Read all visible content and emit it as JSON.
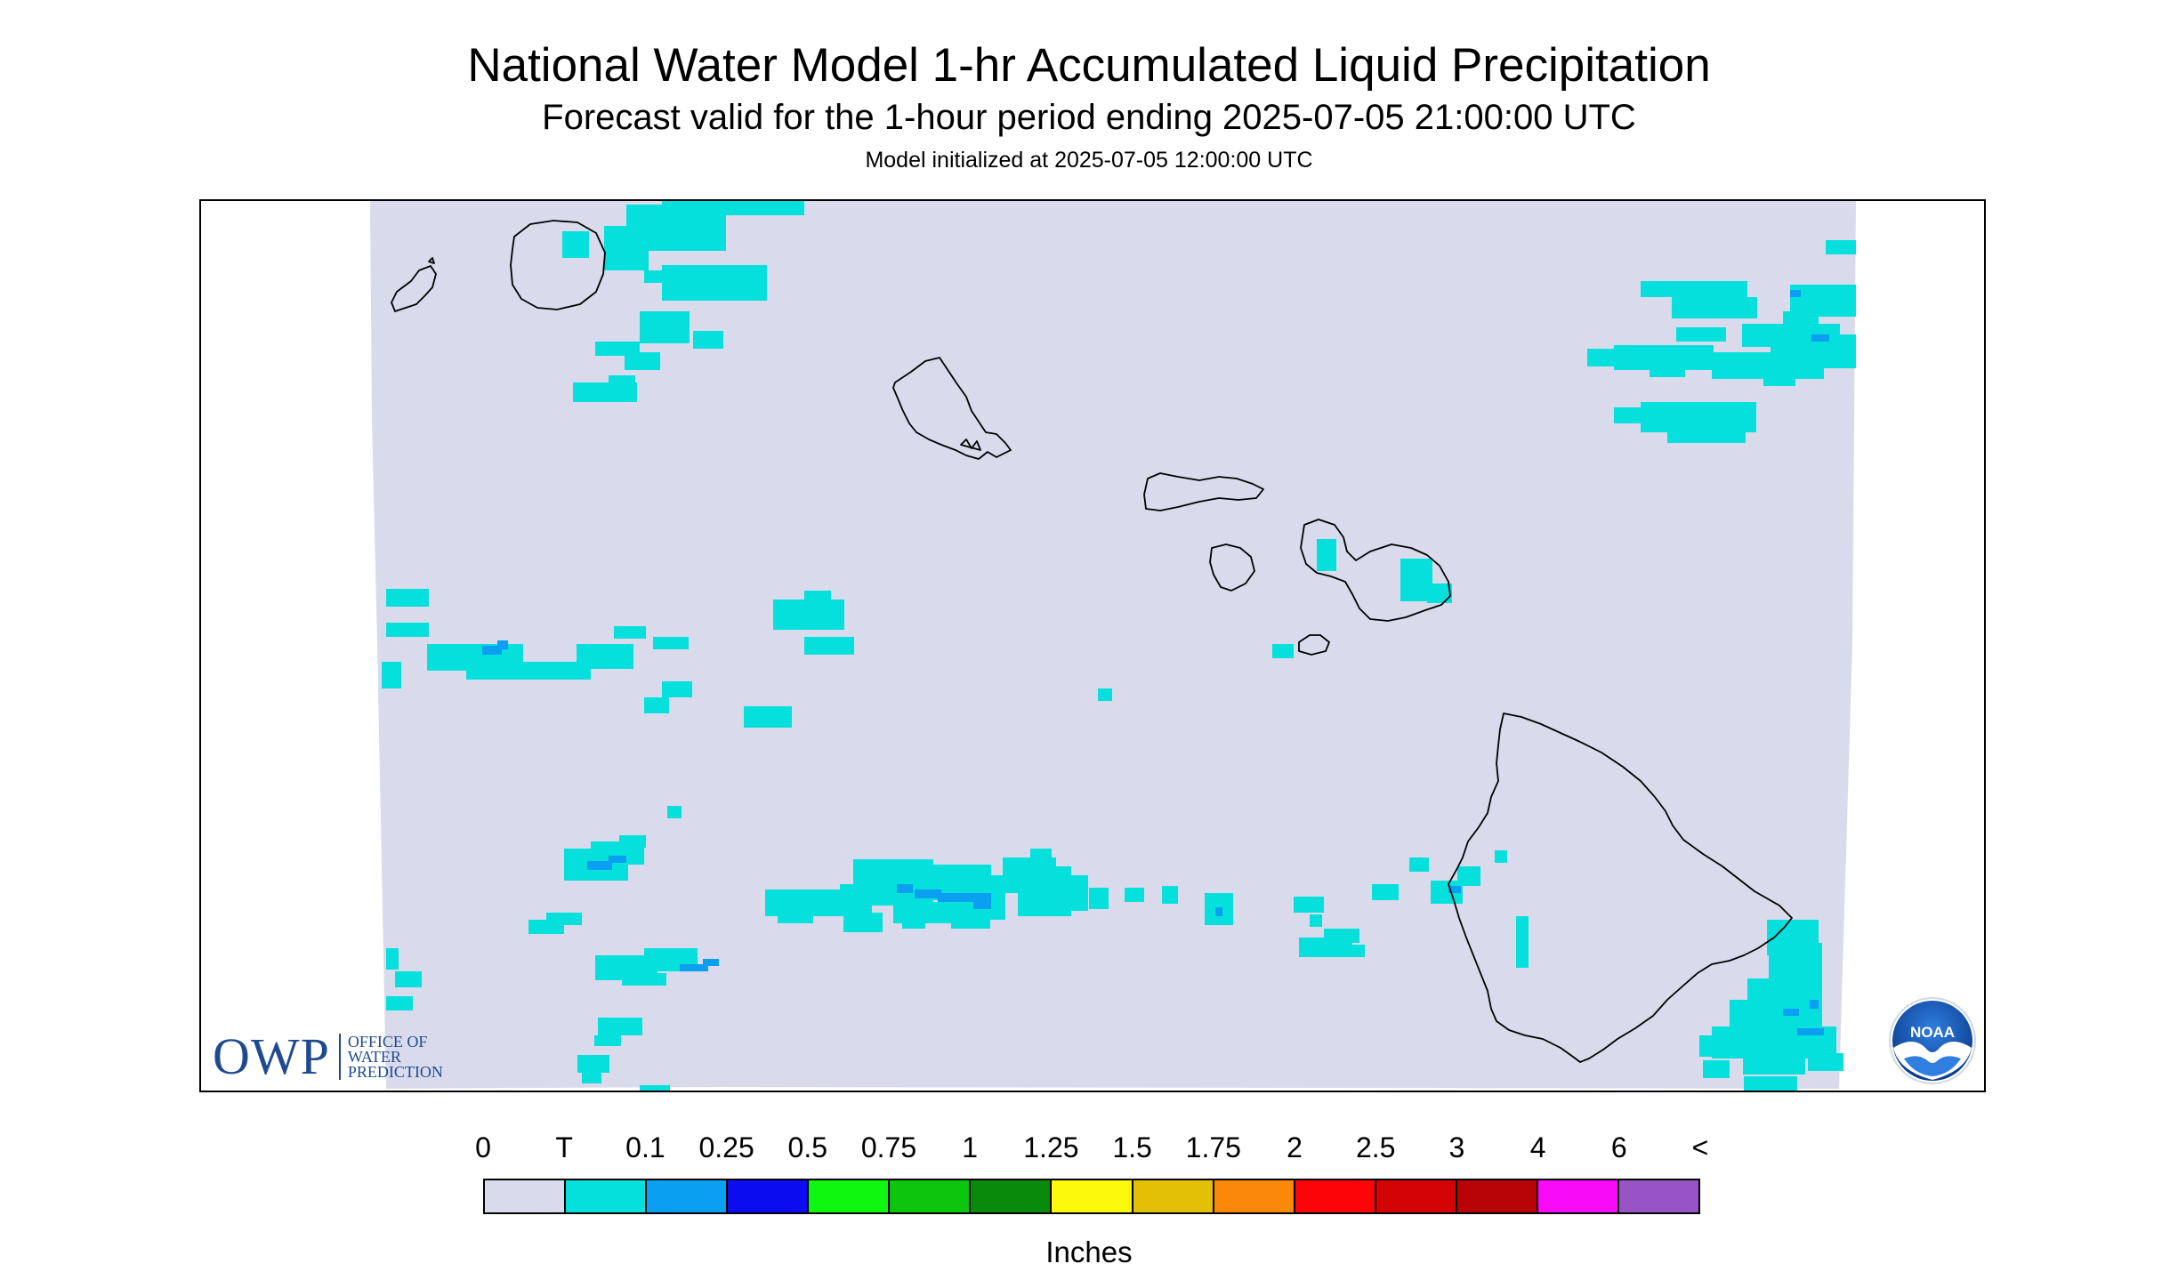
{
  "header": {
    "title": "National Water Model 1-hr Accumulated Liquid Precipitation",
    "subtitle": "Forecast valid for the 1-hour period ending 2025-07-05 21:00:00 UTC",
    "init_line": "Model initialized at 2025-07-05 12:00:00 UTC"
  },
  "map": {
    "region": "Hawaiian Islands",
    "background_color": "#d9dbec",
    "trace_color": "#05e0dc",
    "light_color": "#0a9ff0",
    "island_outline_color": "#000000"
  },
  "logos": {
    "owp": {
      "word": "OWP",
      "line1": "OFFICE OF",
      "line2": "WATER",
      "line3": "PREDICTION",
      "color": "#1f4a8f"
    },
    "noaa": {
      "text": "NOAA"
    }
  },
  "legend": {
    "labels": [
      "0",
      "T",
      "0.1",
      "0.25",
      "0.5",
      "0.75",
      "1",
      "1.25",
      "1.5",
      "1.75",
      "2",
      "2.5",
      "3",
      "4",
      "6",
      "<"
    ],
    "colors": [
      "#d9dbec",
      "#05e0dc",
      "#0a9ff0",
      "#0b0cf0",
      "#0df80e",
      "#0bc60c",
      "#098a0b",
      "#fcf80c",
      "#e3bf06",
      "#fc880a",
      "#fc0408",
      "#d40406",
      "#b80406",
      "#f80cf8",
      "#9854c6"
    ],
    "units": "Inches"
  }
}
